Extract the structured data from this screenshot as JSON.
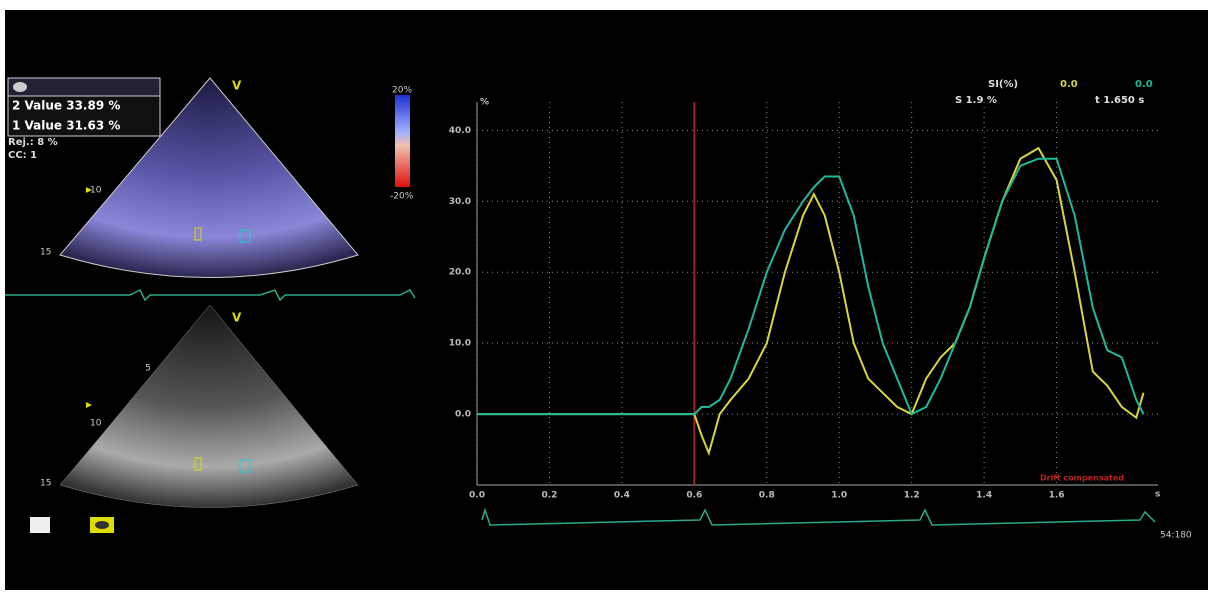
{
  "panel": {
    "value_box": [
      "2 Value 33.89 %",
      "1 Value 31.63 %"
    ],
    "rejection": "Rej.: 8 %",
    "cc": "CC: 1",
    "view_top": "V",
    "view_bottom": "V",
    "depth_top": [
      "10",
      "15"
    ],
    "depth_bottom": [
      "5",
      "10",
      "15"
    ],
    "scale_max": "20%",
    "scale_min": "-20%",
    "heart_rate": "54:180"
  },
  "chart_data": {
    "type": "line",
    "header": "SI(%)",
    "readout_s": "S 1.9 %",
    "readout_t": "t 1.650 s",
    "y_unit": "%",
    "x_unit": "s",
    "annotation": "Drift compensated",
    "marker_x": 0.6,
    "marker_color": "#a0201c",
    "x": [
      0,
      0.6,
      0.62,
      0.64,
      0.67,
      0.7,
      0.75,
      0.8,
      0.85,
      0.9,
      0.93,
      0.96,
      1.0,
      1.04,
      1.08,
      1.12,
      1.16,
      1.2,
      1.24,
      1.28,
      1.32,
      1.36,
      1.4,
      1.45,
      1.5,
      1.55,
      1.6,
      1.65,
      1.7,
      1.74,
      1.78,
      1.82,
      1.84
    ],
    "series": [
      {
        "color": "#d8d640",
        "readout": "0.0",
        "values": [
          0,
          0,
          -3,
          -5.5,
          0,
          2,
          5,
          10,
          20,
          28,
          31,
          28,
          20,
          10,
          5,
          3,
          1,
          0,
          5,
          8,
          10,
          15,
          22,
          30,
          36,
          37.5,
          33,
          20,
          6,
          4,
          1,
          -0.5,
          3
        ]
      },
      {
        "color": "#20b89a",
        "readout": "0.0",
        "values": [
          0,
          0,
          1,
          1,
          2,
          5,
          12,
          20,
          26,
          30,
          32,
          33.5,
          33.5,
          28,
          18,
          10,
          5,
          0,
          1,
          5,
          10,
          15,
          22,
          30,
          35,
          36,
          36,
          28,
          15,
          9,
          8,
          2,
          0
        ]
      }
    ],
    "xlim": [
      0,
      1.88
    ],
    "ylim": [
      -10,
      44
    ],
    "xticks": [
      {
        "value": 0,
        "label": "0.0"
      },
      {
        "value": 0.2,
        "label": "0.2"
      },
      {
        "value": 0.4,
        "label": "0.4"
      },
      {
        "value": 0.6,
        "label": "0.6"
      },
      {
        "value": 0.8,
        "label": "0.8"
      },
      {
        "value": 1.0,
        "label": "1.0"
      },
      {
        "value": 1.2,
        "label": "1.2"
      },
      {
        "value": 1.4,
        "label": "1.4"
      },
      {
        "value": 1.6,
        "label": "1.6"
      }
    ],
    "yticks": [
      {
        "value": 0,
        "label": "0.0"
      },
      {
        "value": 10,
        "label": "10.0"
      },
      {
        "value": 20,
        "label": "20.0"
      },
      {
        "value": 30,
        "label": "30.0"
      },
      {
        "value": 40,
        "label": "40.0"
      }
    ],
    "grid": true
  }
}
